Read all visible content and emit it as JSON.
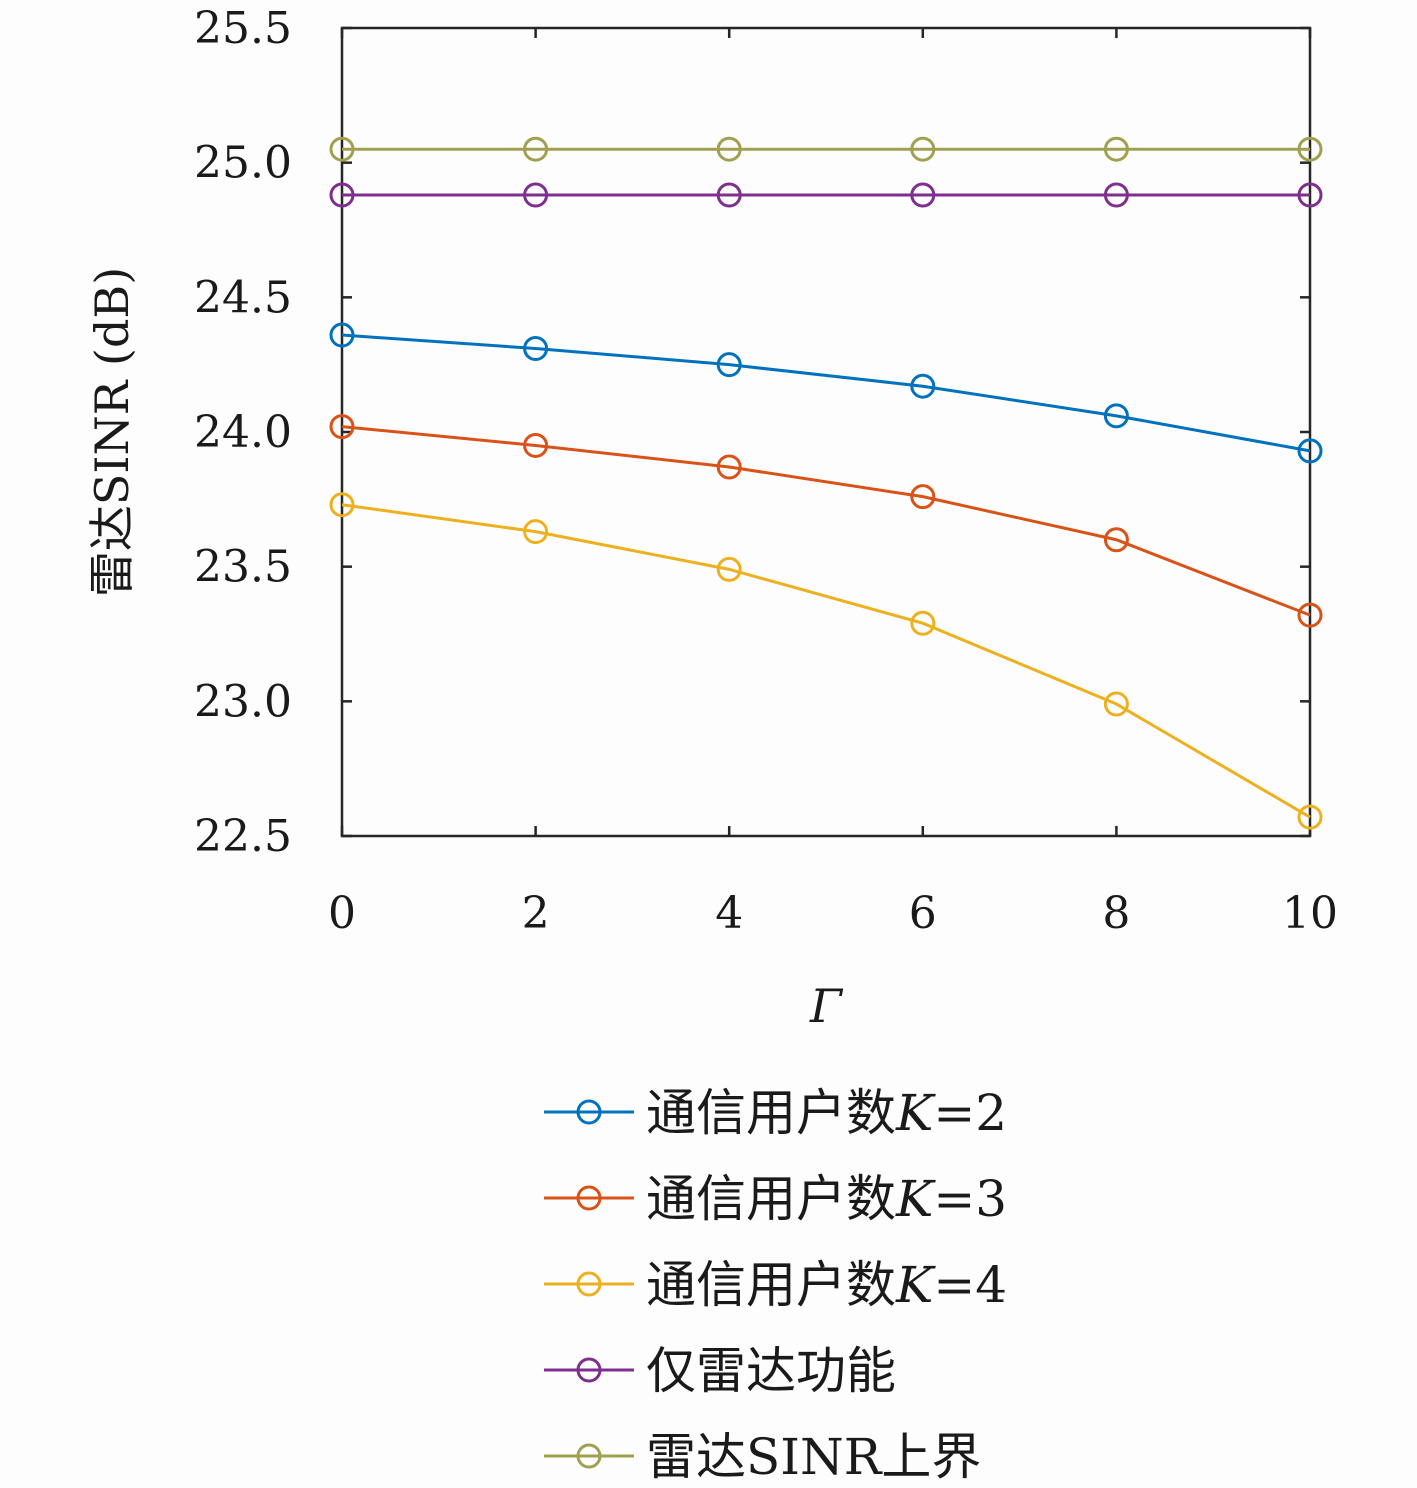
{
  "chart_data": {
    "type": "line",
    "title": "",
    "xlabel": "Γ",
    "ylabel": "雷达SINR (dB)",
    "xlim": [
      0,
      10
    ],
    "ylim": [
      22.5,
      25.5
    ],
    "xticks": [
      0,
      2,
      4,
      6,
      8,
      10
    ],
    "yticks": [
      22.5,
      23.0,
      23.5,
      24.0,
      24.5,
      25.0,
      25.5
    ],
    "ytick_labels": [
      "22.5",
      "23.0",
      "23.5",
      "24.0",
      "24.5",
      "25.0",
      "25.5"
    ],
    "grid": false,
    "legend_placement": "below",
    "x": [
      0,
      2,
      4,
      6,
      8,
      10
    ],
    "series": [
      {
        "name": "通信用户数K=2",
        "label_prefix": "通信用户数",
        "label_var": "K",
        "label_suffix": "=2",
        "color": "#0072BD",
        "values": [
          24.36,
          24.31,
          24.25,
          24.17,
          24.06,
          23.93
        ]
      },
      {
        "name": "通信用户数K=3",
        "label_prefix": "通信用户数",
        "label_var": "K",
        "label_suffix": "=3",
        "color": "#D95319",
        "values": [
          24.02,
          23.95,
          23.87,
          23.76,
          23.6,
          23.32
        ]
      },
      {
        "name": "通信用户数K=4",
        "label_prefix": "通信用户数",
        "label_var": "K",
        "label_suffix": "=4",
        "color": "#EDB120",
        "values": [
          23.73,
          23.63,
          23.49,
          23.29,
          22.99,
          22.57
        ]
      },
      {
        "name": "仅雷达功能",
        "label_prefix": "仅雷达功能",
        "label_var": "",
        "label_suffix": "",
        "color": "#7E2F8E",
        "values": [
          24.88,
          24.88,
          24.88,
          24.88,
          24.88,
          24.88
        ]
      },
      {
        "name": "雷达SINR上界",
        "label_prefix": "雷达SINR上界",
        "label_var": "",
        "label_suffix": "",
        "color": "#A0A050",
        "values": [
          25.05,
          25.05,
          25.05,
          25.05,
          25.05,
          25.05
        ]
      }
    ]
  }
}
